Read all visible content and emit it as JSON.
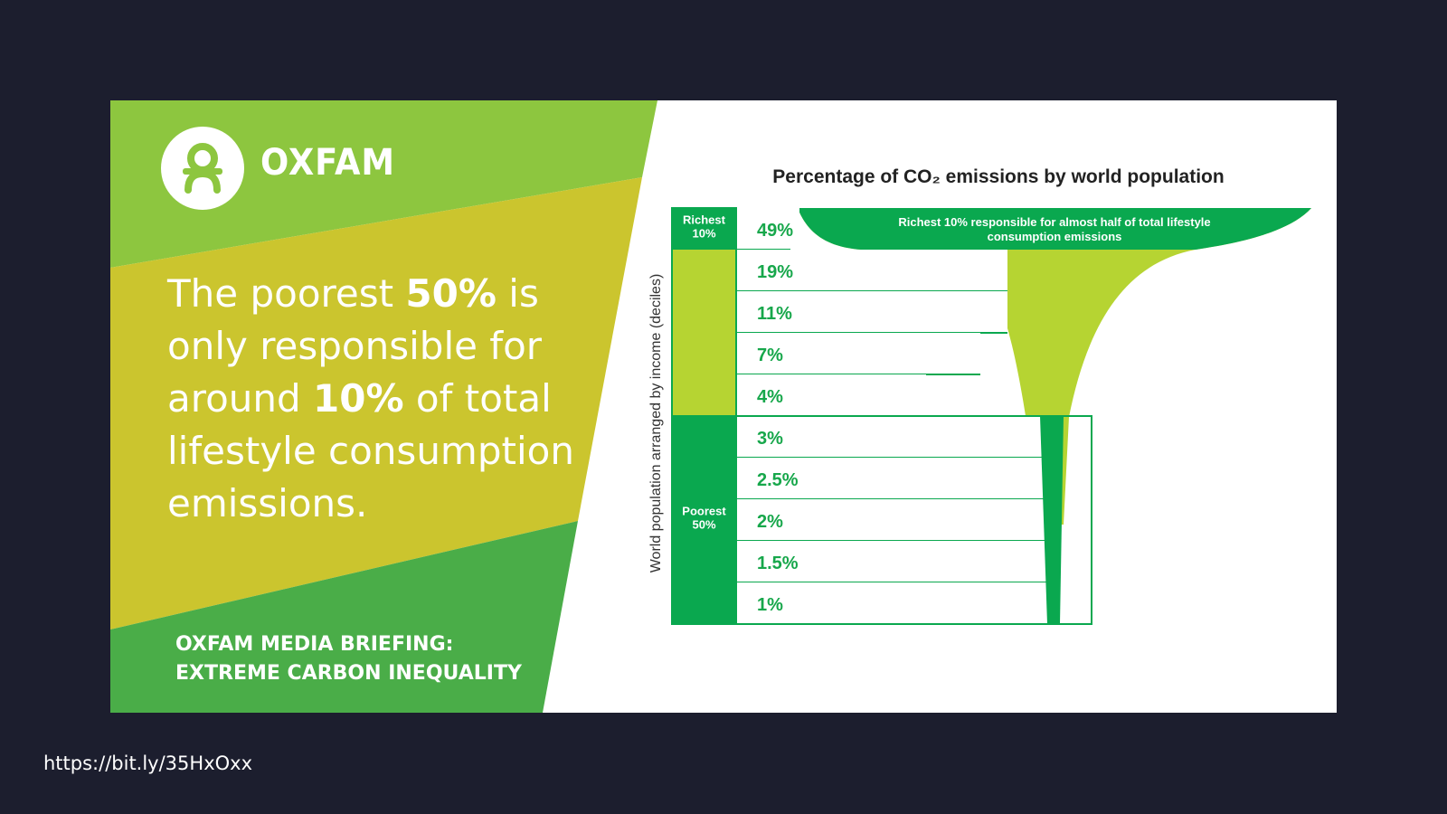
{
  "brand": {
    "name": "OXFAM",
    "logo_icon": "oxfam-person-icon"
  },
  "headline": {
    "part1": "The poorest ",
    "bold1": "50%",
    "part2": " is only responsible for around ",
    "bold2": "10%",
    "part3": " of total lifestyle consumption emissions."
  },
  "briefing": {
    "line1": "OXFAM MEDIA BRIEFING:",
    "line2": "EXTREME CARBON INEQUALITY"
  },
  "colors": {
    "light_green": "#8dc63f",
    "mustard": "#cbc52e",
    "dark_green": "#4aad48",
    "chart_green": "#0aa84f",
    "chart_light_green": "#b6d432",
    "chart_label_green": "#17a74b",
    "page_bg": "#1c1e2e"
  },
  "chart_data": {
    "type": "bar",
    "title": "Percentage of CO₂ emissions by world population",
    "ylabel": "World population arranged by income (deciles)",
    "categories": [
      "Richest 10%",
      "",
      "",
      "",
      "",
      "",
      "",
      "Poorest 50%",
      "",
      ""
    ],
    "group_labels": [
      {
        "text": "Richest\n10%",
        "start": 0,
        "end": 0
      },
      {
        "text": "Poorest\n50%",
        "start": 5,
        "end": 9
      }
    ],
    "values": [
      49,
      19,
      11,
      7,
      4,
      3,
      2.5,
      2,
      1.5,
      1
    ],
    "value_labels": [
      "49%",
      "19%",
      "11%",
      "7%",
      "4%",
      "3%",
      "2.5%",
      "2%",
      "1.5%",
      "1%"
    ],
    "annotation": "Richest 10% responsible for almost half of total lifestyle consumption emissions",
    "unit": "%"
  },
  "footer": {
    "url": "https://bit.ly/35HxOxx"
  }
}
